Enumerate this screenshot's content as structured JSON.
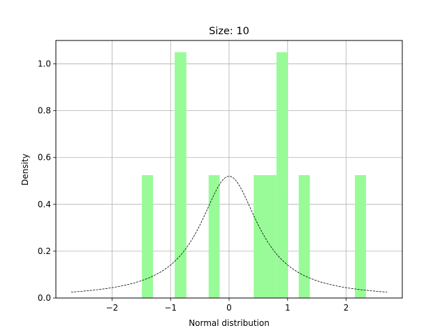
{
  "chart_data": {
    "type": "bar",
    "title": "Size: 10",
    "xlabel": "Normal distribution",
    "ylabel": "Density",
    "xlim": [
      -2.96,
      2.96
    ],
    "ylim": [
      0,
      1.1
    ],
    "grid": true,
    "xticks": [
      -2,
      -1,
      0,
      1,
      2
    ],
    "xtick_labels": [
      "−2",
      "−1",
      "0",
      "1",
      "2"
    ],
    "yticks": [
      0.0,
      0.2,
      0.4,
      0.6,
      0.8,
      1.0
    ],
    "ytick_labels": [
      "0.0",
      "0.2",
      "0.4",
      "0.6",
      "0.8",
      "1.0"
    ],
    "bar_color": "#98fb98",
    "bars": [
      {
        "x0": -1.49,
        "x1": -1.3,
        "y": 0.525
      },
      {
        "x0": -0.93,
        "x1": -0.73,
        "y": 1.05
      },
      {
        "x0": -0.35,
        "x1": -0.16,
        "y": 0.525
      },
      {
        "x0": 0.42,
        "x1": 0.81,
        "y": 0.525
      },
      {
        "x0": 0.81,
        "x1": 1.0,
        "y": 1.05
      },
      {
        "x0": 1.19,
        "x1": 1.38,
        "y": 0.525
      },
      {
        "x0": 2.15,
        "x1": 2.34,
        "y": 0.525
      }
    ],
    "curve": {
      "style": "dashed",
      "color": "#000000",
      "x_range": [
        -2.7,
        2.7
      ],
      "peak": 0.52,
      "scale": 0.61
    }
  }
}
